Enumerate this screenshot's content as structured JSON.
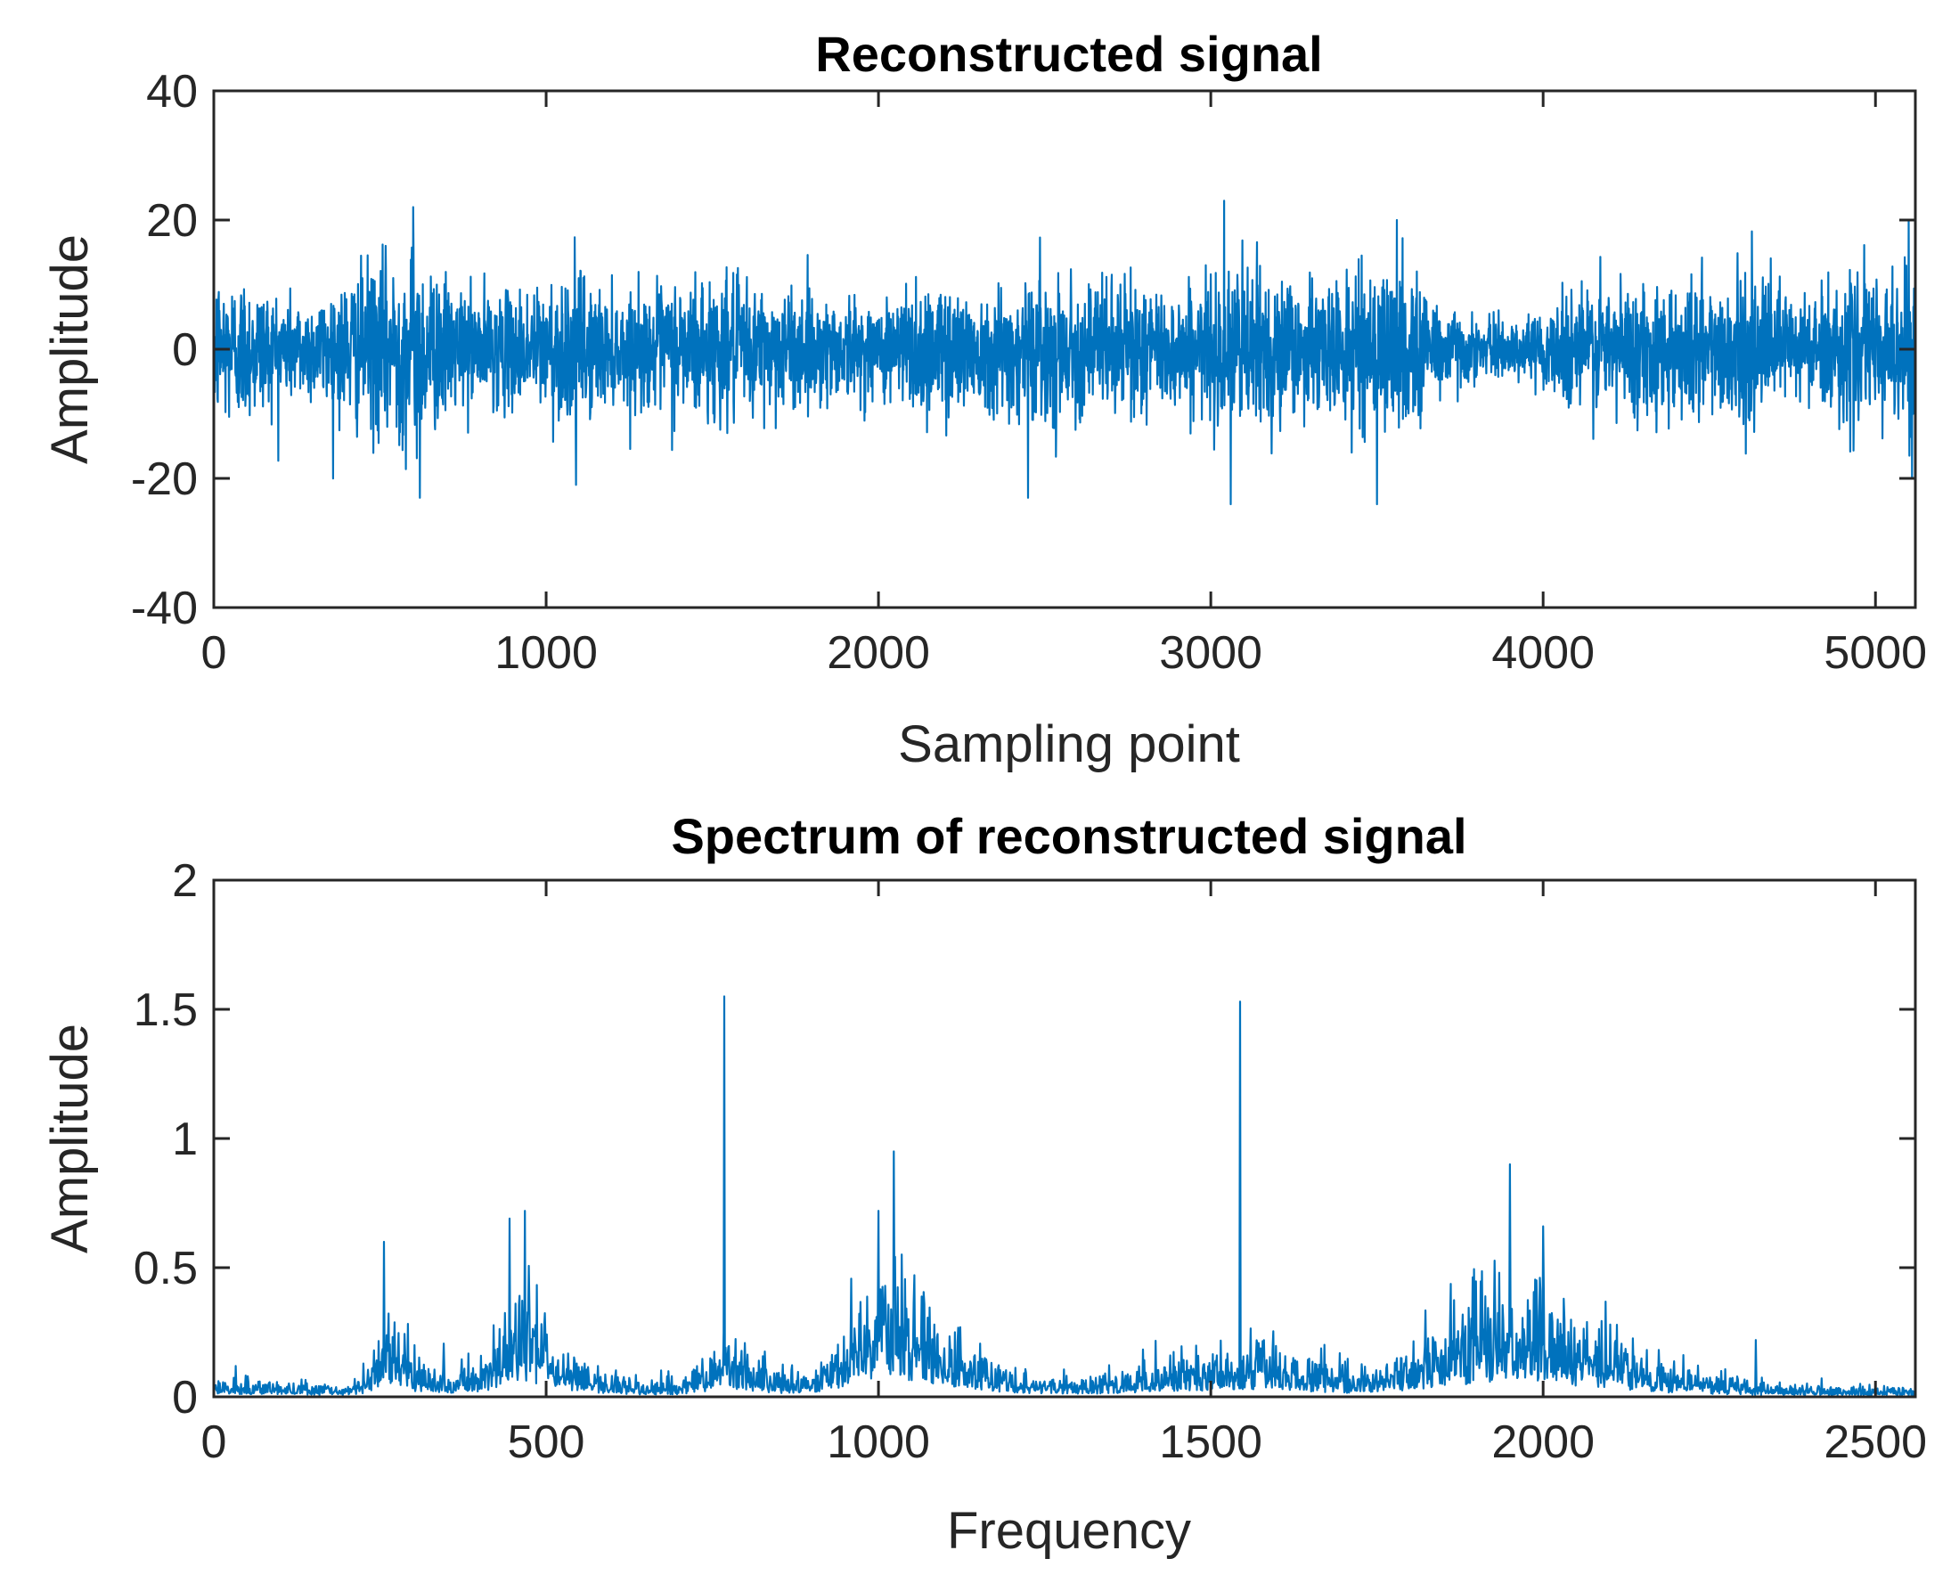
{
  "colors": {
    "series": "#0072BD",
    "axis": "#262626",
    "background": "#ffffff"
  },
  "chart_data": [
    {
      "type": "line",
      "title": "Reconstructed signal",
      "xlabel": "Sampling point",
      "ylabel": "Amplitude",
      "xlim": [
        0,
        5120
      ],
      "ylim": [
        -40,
        40
      ],
      "xticks": [
        0,
        1000,
        2000,
        3000,
        4000,
        5000
      ],
      "xtick_labels": [
        "0",
        "1000",
        "2000",
        "3000",
        "4000",
        "5000"
      ],
      "yticks": [
        -40,
        -20,
        0,
        20,
        40
      ],
      "ytick_labels": [
        "-40",
        "-20",
        "0",
        "20",
        "40"
      ],
      "grid": false,
      "series": [
        {
          "name": "Reconstructed signal",
          "n_points": 5120,
          "envelope": {
            "x": [
              0,
              100,
              200,
              300,
              400,
              500,
              600,
              700,
              800,
              900,
              1000,
              1100,
              1200,
              1300,
              1400,
              1500,
              1600,
              1700,
              1800,
              1900,
              2000,
              2100,
              2200,
              2300,
              2400,
              2500,
              2600,
              2700,
              2800,
              2900,
              3000,
              3100,
              3200,
              3300,
              3400,
              3500,
              3600,
              3700,
              3800,
              3900,
              4000,
              4100,
              4200,
              4300,
              4400,
              4500,
              4600,
              4700,
              4800,
              4900,
              5000,
              5120
            ],
            "amp": [
              14,
              13,
              10,
              9,
              13,
              16,
              18,
              12,
              10,
              10,
              12,
              14,
              9,
              10,
              13,
              13,
              12,
              11,
              10,
              9,
              8,
              13,
              12,
              10,
              12,
              13,
              11,
              12,
              12,
              10,
              12,
              17,
              14,
              11,
              12,
              15,
              14,
              9,
              5,
              5,
              6,
              13,
              12,
              11,
              13,
              13,
              12,
              12,
              10,
              12,
              13,
              16
            ]
          },
          "notable_points": [
            {
              "x": 600,
              "y": 22
            },
            {
              "x": 620,
              "y": -23
            },
            {
              "x": 1090,
              "y": -21
            },
            {
              "x": 2450,
              "y": -23
            },
            {
              "x": 3040,
              "y": 23
            },
            {
              "x": 3060,
              "y": -24
            },
            {
              "x": 3500,
              "y": -24
            },
            {
              "x": 3560,
              "y": 20
            },
            {
              "x": 5100,
              "y": 20
            },
            {
              "x": 5110,
              "y": -20
            }
          ]
        }
      ]
    },
    {
      "type": "line",
      "title": "Spectrum of reconstructed signal",
      "xlabel": "Frequency",
      "ylabel": "Amplitude",
      "xlim": [
        0,
        2560
      ],
      "ylim": [
        0,
        2
      ],
      "xticks": [
        0,
        500,
        1000,
        1500,
        2000,
        2500
      ],
      "xtick_labels": [
        "0",
        "500",
        "1000",
        "1500",
        "2000",
        "2500"
      ],
      "yticks": [
        0,
        0.5,
        1,
        1.5,
        2
      ],
      "ytick_labels": [
        "0",
        "0.5",
        "1",
        "1.5",
        "2"
      ],
      "grid": false,
      "series": [
        {
          "name": "Spectrum",
          "n_points": 2560,
          "envelope": {
            "x": [
              0,
              100,
              150,
              200,
              230,
              260,
              290,
              330,
              380,
              420,
              450,
              470,
              500,
              540,
              600,
              650,
              700,
              740,
              770,
              800,
              850,
              900,
              950,
              980,
              1010,
              1030,
              1060,
              1100,
              1150,
              1200,
              1250,
              1300,
              1350,
              1400,
              1450,
              1500,
              1540,
              1600,
              1650,
              1700,
              1750,
              1800,
              1850,
              1900,
              1950,
              2000,
              2050,
              2100,
              2150,
              2200,
              2250,
              2300,
              2350,
              2400,
              2450,
              2500,
              2560
            ],
            "amp": [
              0.06,
              0.05,
              0.04,
              0.03,
              0.08,
              0.25,
              0.15,
              0.08,
              0.1,
              0.14,
              0.35,
              0.38,
              0.22,
              0.12,
              0.08,
              0.05,
              0.06,
              0.12,
              0.22,
              0.14,
              0.08,
              0.1,
              0.22,
              0.38,
              0.5,
              0.46,
              0.32,
              0.22,
              0.14,
              0.09,
              0.07,
              0.07,
              0.08,
              0.11,
              0.13,
              0.15,
              0.17,
              0.15,
              0.12,
              0.09,
              0.1,
              0.16,
              0.24,
              0.32,
              0.38,
              0.34,
              0.26,
              0.2,
              0.14,
              0.09,
              0.07,
              0.05,
              0.04,
              0.04,
              0.03,
              0.03,
              0.03
            ]
          },
          "notable_points": [
            {
              "x": 256,
              "y": 0.6
            },
            {
              "x": 445,
              "y": 0.69
            },
            {
              "x": 468,
              "y": 0.72
            },
            {
              "x": 768,
              "y": 1.55
            },
            {
              "x": 1000,
              "y": 0.72
            },
            {
              "x": 1023,
              "y": 0.95
            },
            {
              "x": 1544,
              "y": 1.53
            },
            {
              "x": 1950,
              "y": 0.9
            },
            {
              "x": 2000,
              "y": 0.66
            },
            {
              "x": 2320,
              "y": 0.22
            }
          ]
        }
      ]
    }
  ]
}
